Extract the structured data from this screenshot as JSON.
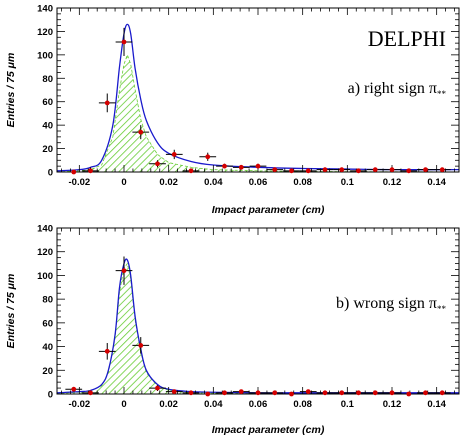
{
  "chart_data": [
    {
      "type": "scatter",
      "experiment_label": "DELPHI",
      "panel_label": "a) right sign π",
      "panel_label_subscript": "**",
      "xlabel": "Impact parameter (cm)",
      "ylabel": "Entries / 75 μm",
      "xlim": [
        -0.03,
        0.15
      ],
      "ylim": [
        0,
        140
      ],
      "x_ticks": [
        -0.02,
        0,
        0.02,
        0.04,
        0.06,
        0.08,
        0.1,
        0.12,
        0.14
      ],
      "x_tick_labels": [
        "-0.02",
        "0",
        "0.02",
        "0.04",
        "0.06",
        "0.08",
        "0.1",
        "0.12",
        "0.14"
      ],
      "y_ticks": [
        0,
        20,
        40,
        60,
        80,
        100,
        120,
        140
      ],
      "y_tick_labels": [
        "0",
        "20",
        "40",
        "60",
        "80",
        "100",
        "120",
        "140"
      ],
      "colors": {
        "data_point": "#d40000",
        "error_bar": "#000000",
        "fit_curve": "#1a1acc",
        "signal_fill": "#66cc33"
      },
      "series": [
        {
          "kind": "data_points",
          "x": [
            -0.0225,
            -0.015,
            -0.0075,
            0.0,
            0.0075,
            0.015,
            0.0225,
            0.03,
            0.0375,
            0.045,
            0.0525,
            0.06,
            0.0675,
            0.075,
            0.0825,
            0.09,
            0.0975,
            0.105,
            0.1125,
            0.12,
            0.1275,
            0.135,
            0.1425
          ],
          "y": [
            0,
            1,
            59,
            111,
            34,
            7,
            15,
            1,
            13,
            5,
            4,
            5,
            2,
            1,
            1,
            2,
            2,
            1,
            2,
            2,
            1,
            2,
            2
          ],
          "y_err": [
            1.5,
            3,
            8,
            12,
            6,
            3,
            4,
            2,
            3.5,
            2,
            2,
            2,
            1.5,
            1.5,
            1.5,
            1.5,
            1.5,
            1.5,
            1.5,
            1.5,
            1.5,
            1.5,
            1.5
          ]
        },
        {
          "kind": "fit_curve",
          "x": [
            -0.03,
            -0.02,
            -0.015,
            -0.01,
            -0.005,
            -0.002,
            0.0,
            0.0015,
            0.003,
            0.005,
            0.0075,
            0.01,
            0.015,
            0.02,
            0.03,
            0.04,
            0.06,
            0.08,
            0.1,
            0.12,
            0.15
          ],
          "y": [
            1,
            2,
            4,
            10,
            40,
            90,
            118,
            126,
            118,
            88,
            62,
            44,
            25,
            16,
            9,
            6,
            4,
            3,
            2.5,
            2,
            2
          ]
        },
        {
          "kind": "signal_component",
          "x": [
            -0.03,
            -0.02,
            -0.015,
            -0.01,
            -0.005,
            -0.002,
            0.0,
            0.0015,
            0.003,
            0.005,
            0.0075,
            0.01,
            0.015,
            0.02,
            0.03,
            0.04,
            0.06,
            0.08,
            0.1,
            0.12,
            0.15
          ],
          "y": [
            0,
            1,
            2,
            6,
            30,
            70,
            92,
            100,
            92,
            70,
            45,
            30,
            15,
            8,
            4,
            2,
            1,
            0.5,
            0.3,
            0.2,
            0.1
          ]
        }
      ]
    },
    {
      "type": "scatter",
      "panel_label": "b) wrong sign π",
      "panel_label_subscript": "**",
      "xlabel": "Impact parameter (cm)",
      "ylabel": "Entries / 75 μm",
      "xlim": [
        -0.03,
        0.15
      ],
      "ylim": [
        0,
        140
      ],
      "x_ticks": [
        -0.02,
        0,
        0.02,
        0.04,
        0.06,
        0.08,
        0.1,
        0.12,
        0.14
      ],
      "x_tick_labels": [
        "-0.02",
        "0",
        "0.02",
        "0.04",
        "0.06",
        "0.08",
        "0.1",
        "0.12",
        "0.14"
      ],
      "y_ticks": [
        0,
        20,
        40,
        60,
        80,
        100,
        120,
        140
      ],
      "y_tick_labels": [
        "0",
        "20",
        "40",
        "60",
        "80",
        "100",
        "120",
        "140"
      ],
      "colors": {
        "data_point": "#d40000",
        "error_bar": "#000000",
        "fit_curve": "#1a1acc",
        "signal_fill": "#66cc33"
      },
      "series": [
        {
          "kind": "data_points",
          "x": [
            -0.0225,
            -0.015,
            -0.0075,
            0.0,
            0.0075,
            0.015,
            0.0225,
            0.03,
            0.0375,
            0.045,
            0.0525,
            0.06,
            0.0675,
            0.075,
            0.0825,
            0.09,
            0.0975,
            0.105,
            0.1125,
            0.12,
            0.1275,
            0.135,
            0.1425
          ],
          "y": [
            4,
            1,
            36,
            104,
            41,
            5,
            2,
            1,
            0,
            1,
            2,
            1,
            1,
            0,
            2,
            1,
            1,
            1,
            1,
            1,
            0,
            1,
            1
          ],
          "y_err": [
            2,
            1.5,
            7,
            12,
            7,
            2.5,
            1.5,
            1.5,
            1.5,
            1.5,
            1.5,
            1.5,
            1.5,
            1.5,
            1.5,
            1.5,
            1.5,
            1.5,
            1.5,
            1.5,
            1.5,
            1.5,
            1.5
          ]
        },
        {
          "kind": "fit_curve",
          "x": [
            -0.03,
            -0.02,
            -0.015,
            -0.01,
            -0.007,
            -0.004,
            -0.002,
            0.0,
            0.0015,
            0.003,
            0.005,
            0.0075,
            0.01,
            0.015,
            0.02,
            0.03,
            0.04,
            0.06,
            0.08,
            0.1,
            0.15
          ],
          "y": [
            1,
            2,
            3,
            8,
            20,
            50,
            90,
            110,
            113,
            100,
            65,
            38,
            20,
            8,
            4,
            2,
            1.5,
            1,
            1,
            1,
            1
          ]
        },
        {
          "kind": "signal_component",
          "x": [
            -0.03,
            -0.02,
            -0.015,
            -0.01,
            -0.007,
            -0.004,
            -0.002,
            0.0,
            0.0015,
            0.003,
            0.005,
            0.0075,
            0.01,
            0.015,
            0.02,
            0.03,
            0.04,
            0.06,
            0.08,
            0.1,
            0.15
          ],
          "y": [
            0.5,
            1.5,
            2.5,
            7,
            18,
            47,
            86,
            106,
            110,
            97,
            62,
            35,
            18,
            6.5,
            3,
            1.2,
            0.8,
            0.5,
            0.4,
            0.3,
            0.2
          ]
        }
      ]
    }
  ]
}
